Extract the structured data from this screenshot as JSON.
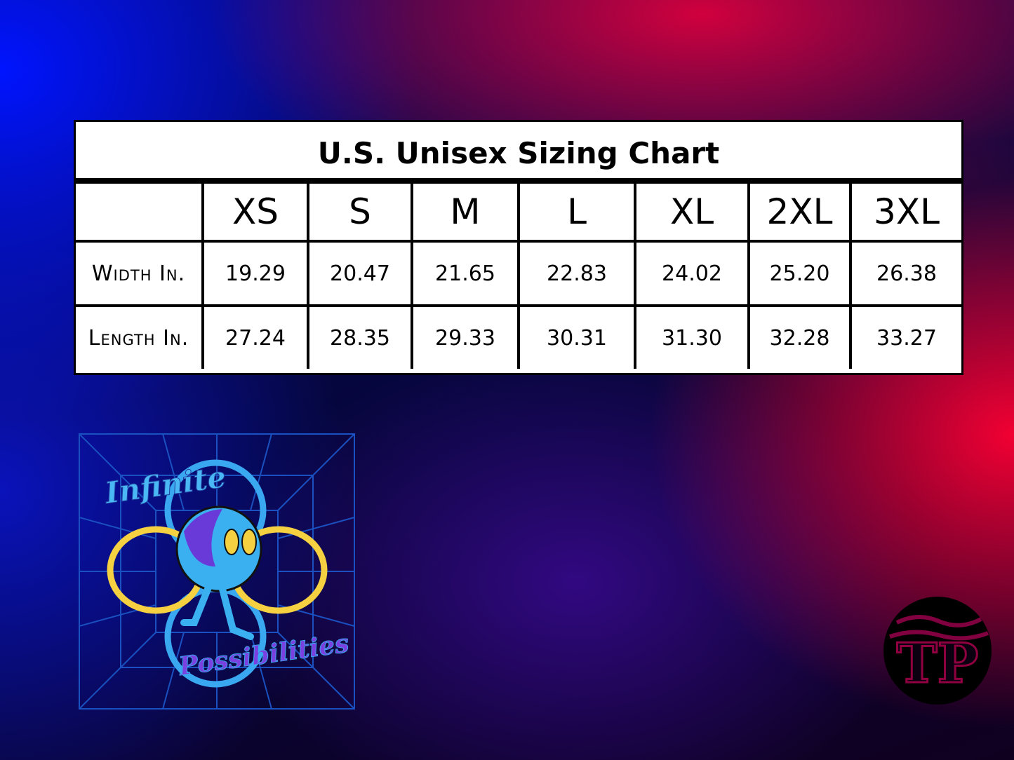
{
  "table": {
    "title": "U.S. Unisex Sizing Chart",
    "header": [
      "XS",
      "S",
      "M",
      "L",
      "XL",
      "2XL",
      "3XL"
    ],
    "rows": [
      {
        "label": "Width In.",
        "cells": [
          "19.29",
          "20.47",
          "21.65",
          "22.83",
          "24.02",
          "25.20",
          "26.38"
        ]
      },
      {
        "label": "Length In.",
        "cells": [
          "27.24",
          "28.35",
          "29.33",
          "30.31",
          "31.30",
          "32.28",
          "33.27"
        ]
      }
    ]
  },
  "artwork": {
    "top_text": "Infinite",
    "bottom_text": "Possibilities"
  },
  "brand_mark": "TP"
}
